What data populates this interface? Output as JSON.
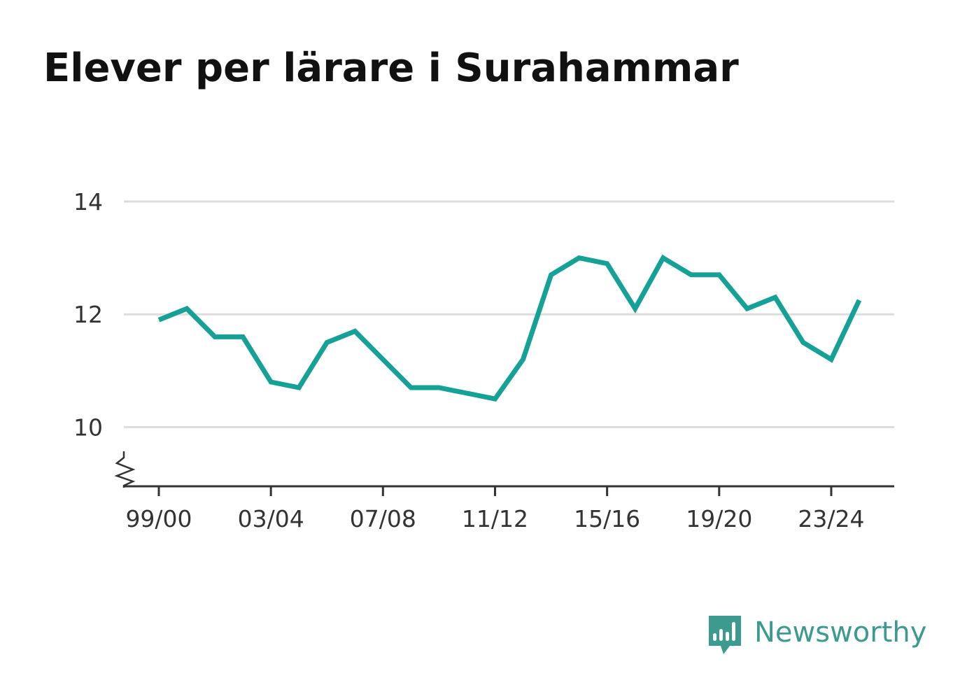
{
  "title": "Elever per lärare i Surahammar",
  "brand": {
    "name": "Newsworthy",
    "icon": "newsworthy-bar-chart-icon",
    "color": "#3c9a8e"
  },
  "colors": {
    "line": "#16a196",
    "grid": "#dddddd",
    "axis": "#333333",
    "text": "#333333"
  },
  "chart_data": {
    "type": "line",
    "title": "Elever per lärare i Surahammar",
    "xlabel": "",
    "ylabel": "",
    "categories": [
      "99/00",
      "00/01",
      "01/02",
      "02/03",
      "03/04",
      "04/05",
      "05/06",
      "06/07",
      "07/08",
      "08/09",
      "09/10",
      "10/11",
      "11/12",
      "12/13",
      "13/14",
      "14/15",
      "15/16",
      "16/17",
      "17/18",
      "18/19",
      "19/20",
      "20/21",
      "21/22",
      "22/23",
      "23/24",
      "24/25"
    ],
    "series": [
      {
        "values": [
          11.9,
          12.1,
          11.6,
          11.6,
          10.8,
          10.7,
          11.5,
          11.7,
          11.2,
          10.7,
          10.7,
          10.6,
          10.5,
          11.2,
          12.7,
          13.0,
          12.9,
          12.1,
          13.0,
          12.7,
          12.7,
          12.1,
          12.3,
          11.5,
          11.2,
          12.25
        ]
      }
    ],
    "x_tick_labels": [
      "99/00",
      "03/04",
      "07/08",
      "11/12",
      "15/16",
      "19/20",
      "23/24"
    ],
    "y_ticks": [
      10,
      12,
      14
    ],
    "ylim": [
      8.95,
      14
    ],
    "y_axis_break": true,
    "grid": true,
    "legend": "none"
  }
}
